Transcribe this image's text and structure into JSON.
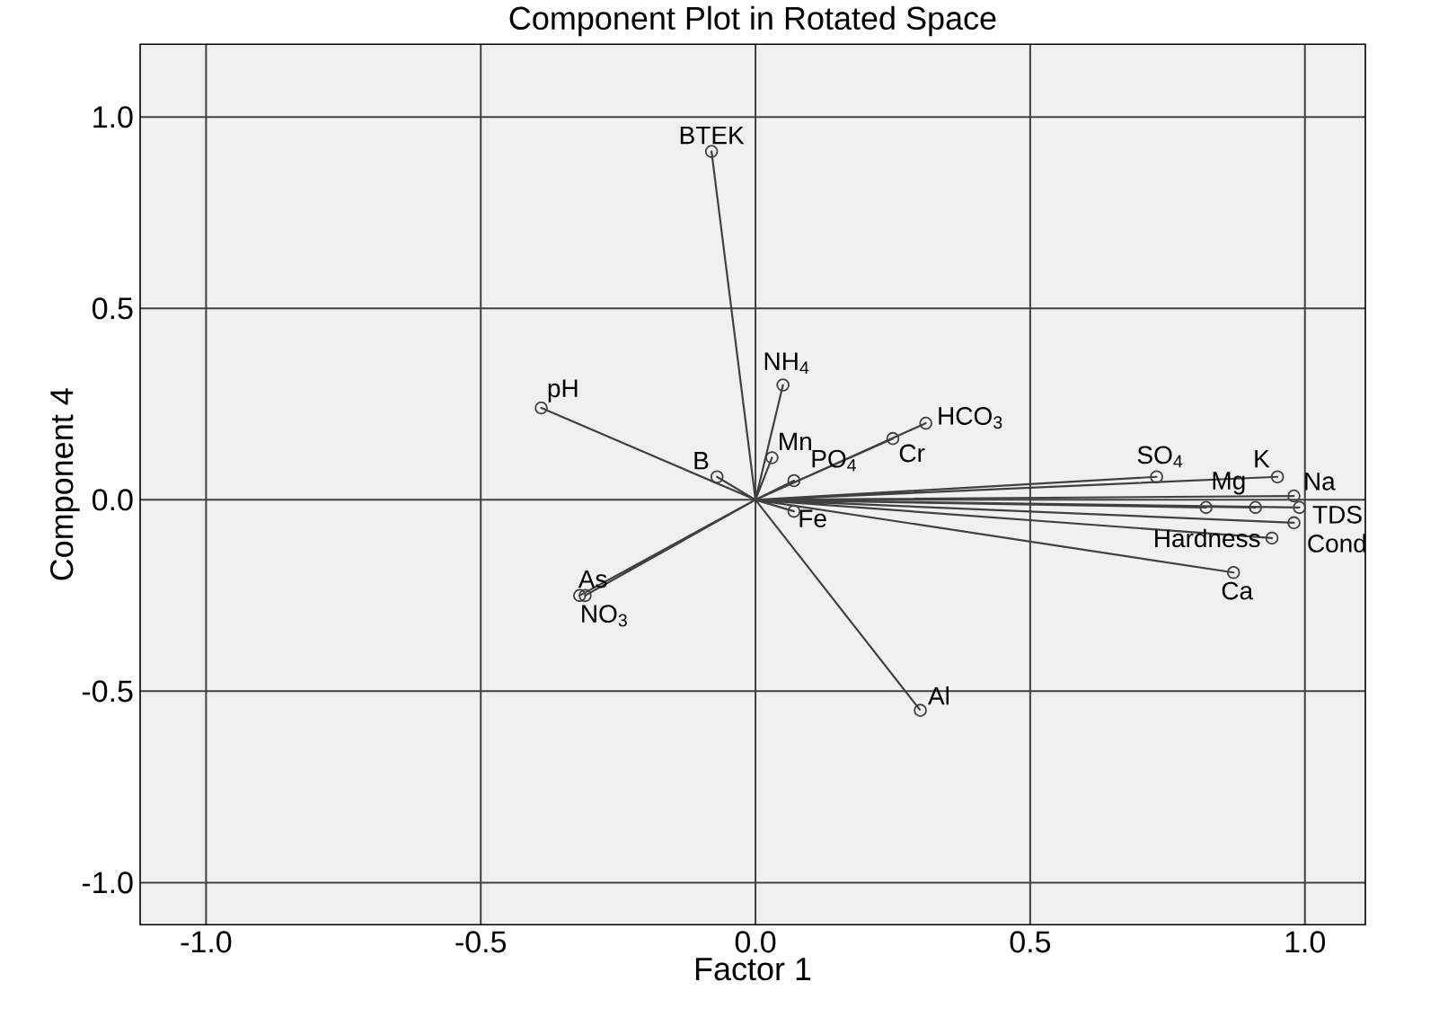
{
  "chart_data": {
    "type": "scatter",
    "title": "Component Plot in Rotated Space",
    "xlabel": "Factor 1",
    "ylabel": "Component 4",
    "xlim": [
      -1.12,
      1.11
    ],
    "ylim": [
      -1.11,
      1.19
    ],
    "xticks": [
      {
        "value": -1,
        "label": "-1.0"
      },
      {
        "value": -0.5,
        "label": "-0.5"
      },
      {
        "value": 0,
        "label": "0.0"
      },
      {
        "value": 0.5,
        "label": "0.5"
      },
      {
        "value": 1,
        "label": "1.0"
      }
    ],
    "yticks": [
      {
        "value": -1,
        "label": "-1.0"
      },
      {
        "value": -0.5,
        "label": "-0.5"
      },
      {
        "value": 0,
        "label": "0.0"
      },
      {
        "value": 0.5,
        "label": "0.5"
      },
      {
        "value": 1,
        "label": "1.0"
      }
    ],
    "grid": true,
    "marker": "circle",
    "series": [
      {
        "type": "line",
        "marker": "none",
        "color": "#404040",
        "x": [
          0,
          -0.08,
          0,
          -0.39,
          0,
          0.05,
          0,
          -0.07,
          0,
          0.03,
          0,
          0.07,
          0,
          0.25,
          0,
          0.31,
          0,
          0.07,
          0,
          0.73,
          0,
          0.95,
          0,
          0.98,
          0,
          0.91,
          0,
          0.82,
          0,
          0.99,
          0,
          0.94,
          0,
          0.98,
          0,
          0.87,
          0,
          -0.32,
          0,
          -0.31,
          0,
          0.3
        ],
        "values": [
          0,
          0.91,
          0,
          0.24,
          0,
          0.3,
          0,
          0.06,
          0,
          0.11,
          0,
          0.05,
          0,
          0.16,
          0,
          0.2,
          0,
          -0.03,
          0,
          0.06,
          0,
          0.06,
          0,
          0.01,
          0,
          -0.02,
          0,
          -0.02,
          0,
          -0.02,
          0,
          -0.1,
          0,
          -0.06,
          0,
          -0.19,
          0,
          -0.25,
          0,
          -0.25,
          0,
          -0.55
        ]
      },
      {
        "type": "scatter",
        "color": "#404040",
        "x": [
          -0.08,
          -0.39,
          0.05,
          -0.07,
          0.03,
          0.07,
          0.25,
          0.31,
          0.07,
          0.73,
          0.95,
          0.98,
          0.91,
          0.82,
          0.99,
          0.94,
          0.98,
          0.87,
          -0.32,
          -0.31,
          0.3
        ],
        "values": [
          0.91,
          0.24,
          0.3,
          0.06,
          0.11,
          0.05,
          0.16,
          0.2,
          -0.03,
          0.06,
          0.06,
          0.01,
          -0.02,
          -0.02,
          -0.02,
          -0.1,
          -0.06,
          -0.19,
          -0.25,
          -0.25,
          -0.55
        ]
      }
    ],
    "annotations": [
      {
        "text": "BTEK",
        "x": -0.08,
        "y": 0.91
      },
      {
        "text": "pH",
        "x": -0.39,
        "y": 0.24
      },
      {
        "text": "NH$_{4}$",
        "x": 0.05,
        "y": 0.3
      },
      {
        "text": "B",
        "x": -0.07,
        "y": 0.06
      },
      {
        "text": "Mn",
        "x": 0.03,
        "y": 0.11
      },
      {
        "text": "PO$_{4}$",
        "x": 0.07,
        "y": 0.05
      },
      {
        "text": "Cr",
        "x": 0.25,
        "y": 0.16
      },
      {
        "text": "HCO$_{3}$",
        "x": 0.31,
        "y": 0.2
      },
      {
        "text": "Fe",
        "x": 0.07,
        "y": -0.03
      },
      {
        "text": "SO$_{4}$",
        "x": 0.73,
        "y": 0.06
      },
      {
        "text": "K",
        "x": 0.95,
        "y": 0.06
      },
      {
        "text": "Na",
        "x": 0.98,
        "y": 0.01
      },
      {
        "text": "Mg",
        "x": 0.91,
        "y": -0.02
      },
      {
        "text": "TDS",
        "x": 0.99,
        "y": -0.02
      },
      {
        "text": "Hardness",
        "x": 0.94,
        "y": -0.1
      },
      {
        "text": "Cond",
        "x": 0.98,
        "y": -0.06
      },
      {
        "text": "Ca",
        "x": 0.87,
        "y": -0.19
      },
      {
        "text": "As",
        "x": -0.32,
        "y": -0.25
      },
      {
        "text": "NO$_{3}$",
        "x": -0.31,
        "y": -0.25
      },
      {
        "text": "Al",
        "x": 0.3,
        "y": -0.55
      }
    ]
  }
}
